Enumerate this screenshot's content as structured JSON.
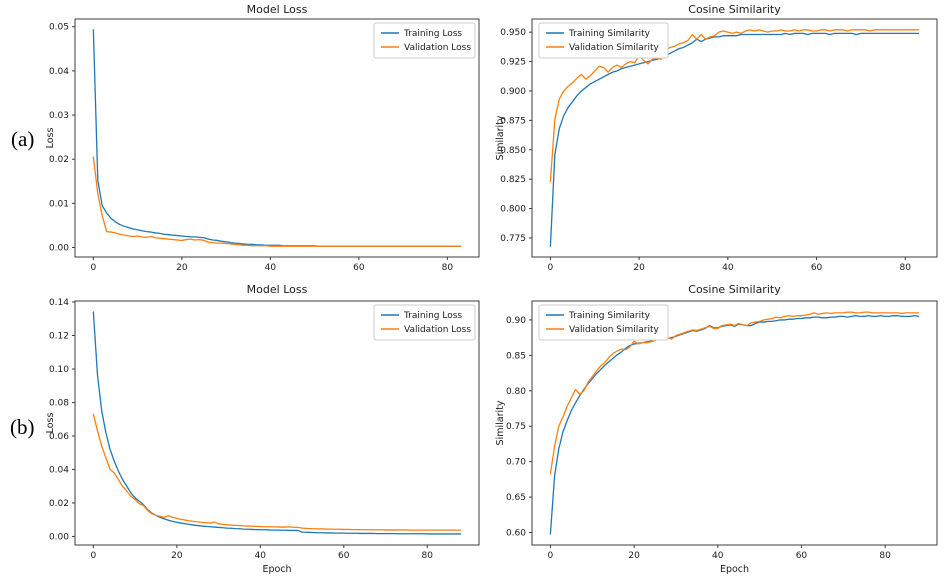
{
  "figure_labels": {
    "a": "(a)",
    "b": "(b)"
  },
  "colors": {
    "training": "#1f77b4",
    "validation": "#ff7f0e",
    "text": "#1a1a1a",
    "spine": "#3c3c3c",
    "legend_border": "#cccccc",
    "background": "#ffffff"
  },
  "chart_data": [
    {
      "id": "model-loss-a",
      "type": "line",
      "title": "Model Loss",
      "xlabel": "",
      "ylabel": "Loss",
      "xlim": [
        -4.15,
        87.15
      ],
      "ylim": [
        -0.00215,
        0.05175
      ],
      "x_start": 0,
      "x_step": 1,
      "grid": false,
      "legend_position": "upper-right",
      "xticks": [
        [
          0,
          "0"
        ],
        [
          20,
          "20"
        ],
        [
          40,
          "40"
        ],
        [
          60,
          "60"
        ],
        [
          80,
          "80"
        ]
      ],
      "yticks": [
        [
          0,
          "0.00"
        ],
        [
          0.01,
          "0.01"
        ],
        [
          0.02,
          "0.02"
        ],
        [
          0.03,
          "0.03"
        ],
        [
          0.04,
          "0.04"
        ],
        [
          0.05,
          "0.05"
        ]
      ],
      "series": [
        {
          "name": "Training Loss",
          "color_key": "training",
          "values": [
            0.0493,
            0.0152,
            0.0095,
            0.0078,
            0.0066,
            0.0058,
            0.0052,
            0.0048,
            0.0045,
            0.0042,
            0.004,
            0.0038,
            0.0036,
            0.0035,
            0.0033,
            0.0032,
            0.003,
            0.0029,
            0.0028,
            0.0027,
            0.0026,
            0.0025,
            0.0024,
            0.0024,
            0.0023,
            0.0022,
            0.0019,
            0.0017,
            0.0016,
            0.0014,
            0.0013,
            0.0011,
            0.001,
            0.0009,
            0.0008,
            0.0007,
            0.0007,
            0.0006,
            0.0006,
            0.0005,
            0.0005,
            0.0005,
            0.0005,
            0.0004,
            0.0004,
            0.0004,
            0.0004,
            0.0004,
            0.0004,
            0.0004,
            0.0004,
            0.0003,
            0.0003,
            0.0003,
            0.0003,
            0.0003,
            0.0003,
            0.0003,
            0.0003,
            0.0003,
            0.0003,
            0.0003,
            0.0003,
            0.0003,
            0.0003,
            0.0003,
            0.0003,
            0.0003,
            0.0003,
            0.0003,
            0.0003,
            0.0003,
            0.0003,
            0.0003,
            0.0003,
            0.0003,
            0.0003,
            0.0003,
            0.0003,
            0.0003,
            0.0003,
            0.0003,
            0.0003,
            0.0003
          ]
        },
        {
          "name": "Validation Loss",
          "color_key": "validation",
          "values": [
            0.0205,
            0.0122,
            0.0072,
            0.0036,
            0.0035,
            0.0033,
            0.003,
            0.0028,
            0.0026,
            0.0025,
            0.0026,
            0.0024,
            0.0023,
            0.0025,
            0.0022,
            0.0021,
            0.002,
            0.0019,
            0.0018,
            0.0017,
            0.0016,
            0.0018,
            0.0019,
            0.0017,
            0.0018,
            0.0016,
            0.0012,
            0.0011,
            0.001,
            0.001,
            0.0009,
            0.0008,
            0.0007,
            0.0006,
            0.0005,
            0.0005,
            0.0004,
            0.0004,
            0.0004,
            0.0004,
            0.0003,
            0.0003,
            0.0003,
            0.0003,
            0.0003,
            0.0003,
            0.0003,
            0.0003,
            0.0003,
            0.0003,
            0.0003,
            0.0003,
            0.0003,
            0.0003,
            0.0003,
            0.0003,
            0.0003,
            0.0003,
            0.0003,
            0.0003,
            0.0003,
            0.0003,
            0.0003,
            0.0003,
            0.0003,
            0.0003,
            0.0003,
            0.0003,
            0.0003,
            0.0003,
            0.0003,
            0.0003,
            0.0003,
            0.0003,
            0.0003,
            0.0003,
            0.0003,
            0.0003,
            0.0003,
            0.0003,
            0.0003,
            0.0003,
            0.0003,
            0.0003
          ]
        }
      ]
    },
    {
      "id": "cosine-similarity-a",
      "type": "line",
      "title": "Cosine Similarity",
      "xlabel": "",
      "ylabel": "Similarity",
      "xlim": [
        -4.15,
        87.15
      ],
      "ylim": [
        0.7588,
        0.9612
      ],
      "x_start": 0,
      "x_step": 1,
      "grid": false,
      "legend_position": "upper-left",
      "xticks": [
        [
          0,
          "0"
        ],
        [
          20,
          "20"
        ],
        [
          40,
          "40"
        ],
        [
          60,
          "60"
        ],
        [
          80,
          "80"
        ]
      ],
      "yticks": [
        [
          0.775,
          "0.775"
        ],
        [
          0.8,
          "0.800"
        ],
        [
          0.825,
          "0.825"
        ],
        [
          0.85,
          "0.850"
        ],
        [
          0.875,
          "0.875"
        ],
        [
          0.9,
          "0.900"
        ],
        [
          0.925,
          "0.925"
        ],
        [
          0.95,
          "0.950"
        ]
      ],
      "series": [
        {
          "name": "Training Similarity",
          "color_key": "training",
          "values": [
            0.768,
            0.846,
            0.868,
            0.879,
            0.886,
            0.891,
            0.896,
            0.9,
            0.903,
            0.906,
            0.908,
            0.91,
            0.912,
            0.914,
            0.916,
            0.917,
            0.919,
            0.92,
            0.921,
            0.922,
            0.923,
            0.924,
            0.925,
            0.926,
            0.927,
            0.928,
            0.93,
            0.932,
            0.934,
            0.936,
            0.937,
            0.939,
            0.941,
            0.944,
            0.942,
            0.944,
            0.945,
            0.946,
            0.946,
            0.947,
            0.947,
            0.947,
            0.947,
            0.948,
            0.948,
            0.948,
            0.948,
            0.948,
            0.948,
            0.948,
            0.948,
            0.948,
            0.948,
            0.949,
            0.948,
            0.949,
            0.949,
            0.949,
            0.948,
            0.949,
            0.949,
            0.949,
            0.949,
            0.948,
            0.949,
            0.949,
            0.949,
            0.949,
            0.949,
            0.948,
            0.949,
            0.949,
            0.949,
            0.949,
            0.949,
            0.949,
            0.949,
            0.949,
            0.949,
            0.949,
            0.949,
            0.949,
            0.949,
            0.949
          ]
        },
        {
          "name": "Validation Similarity",
          "color_key": "validation",
          "values": [
            0.823,
            0.876,
            0.893,
            0.9,
            0.904,
            0.907,
            0.911,
            0.914,
            0.91,
            0.913,
            0.917,
            0.921,
            0.92,
            0.916,
            0.92,
            0.922,
            0.92,
            0.923,
            0.925,
            0.924,
            0.93,
            0.926,
            0.923,
            0.927,
            0.928,
            0.927,
            0.935,
            0.937,
            0.938,
            0.94,
            0.941,
            0.943,
            0.948,
            0.944,
            0.948,
            0.944,
            0.946,
            0.947,
            0.95,
            0.951,
            0.95,
            0.949,
            0.95,
            0.949,
            0.951,
            0.952,
            0.951,
            0.952,
            0.951,
            0.95,
            0.951,
            0.951,
            0.952,
            0.951,
            0.951,
            0.952,
            0.951,
            0.952,
            0.952,
            0.951,
            0.951,
            0.952,
            0.952,
            0.951,
            0.952,
            0.952,
            0.952,
            0.951,
            0.952,
            0.952,
            0.952,
            0.952,
            0.951,
            0.952,
            0.952,
            0.952,
            0.952,
            0.952,
            0.952,
            0.952,
            0.952,
            0.952,
            0.952,
            0.952
          ]
        }
      ]
    },
    {
      "id": "model-loss-b",
      "type": "line",
      "title": "Model Loss",
      "xlabel": "Epoch",
      "ylabel": "Loss",
      "xlim": [
        -4.4,
        92.4
      ],
      "ylim": [
        -0.0051,
        0.1406
      ],
      "x_start": 0,
      "x_step": 1,
      "grid": false,
      "legend_position": "upper-right",
      "xticks": [
        [
          0,
          "0"
        ],
        [
          20,
          "20"
        ],
        [
          40,
          "40"
        ],
        [
          60,
          "60"
        ],
        [
          80,
          "80"
        ]
      ],
      "yticks": [
        [
          0,
          "0.00"
        ],
        [
          0.02,
          "0.02"
        ],
        [
          0.04,
          "0.04"
        ],
        [
          0.06,
          "0.06"
        ],
        [
          0.08,
          "0.08"
        ],
        [
          0.1,
          "0.10"
        ],
        [
          0.12,
          "0.12"
        ],
        [
          0.14,
          "0.14"
        ]
      ],
      "series": [
        {
          "name": "Training Loss",
          "color_key": "training",
          "values": [
            0.134,
            0.096,
            0.075,
            0.062,
            0.052,
            0.045,
            0.039,
            0.034,
            0.03,
            0.026,
            0.023,
            0.021,
            0.019,
            0.016,
            0.014,
            0.0126,
            0.0114,
            0.0105,
            0.0097,
            0.009,
            0.0085,
            0.008,
            0.0076,
            0.0072,
            0.0068,
            0.0065,
            0.0062,
            0.006,
            0.0058,
            0.0056,
            0.0054,
            0.0052,
            0.005,
            0.0049,
            0.0047,
            0.0046,
            0.0044,
            0.0043,
            0.0042,
            0.0041,
            0.004,
            0.004,
            0.0039,
            0.0038,
            0.0038,
            0.0037,
            0.0037,
            0.0036,
            0.0036,
            0.0036,
            0.0026,
            0.0025,
            0.0024,
            0.0023,
            0.0022,
            0.0022,
            0.0021,
            0.0021,
            0.002,
            0.002,
            0.002,
            0.0019,
            0.0019,
            0.0019,
            0.0018,
            0.0018,
            0.0018,
            0.0018,
            0.0017,
            0.0017,
            0.0017,
            0.0017,
            0.0017,
            0.0016,
            0.0016,
            0.0016,
            0.0016,
            0.0016,
            0.0016,
            0.0016,
            0.0015,
            0.0015,
            0.0015,
            0.0015,
            0.0015,
            0.0015,
            0.0015,
            0.0015,
            0.0015
          ]
        },
        {
          "name": "Validation Loss",
          "color_key": "validation",
          "values": [
            0.073,
            0.063,
            0.054,
            0.047,
            0.04,
            0.038,
            0.034,
            0.03,
            0.027,
            0.024,
            0.022,
            0.0195,
            0.0185,
            0.0155,
            0.0136,
            0.0126,
            0.012,
            0.0114,
            0.0124,
            0.0114,
            0.0108,
            0.0102,
            0.0098,
            0.0093,
            0.009,
            0.0087,
            0.0084,
            0.0082,
            0.008,
            0.0086,
            0.0076,
            0.0072,
            0.007,
            0.0068,
            0.0066,
            0.0065,
            0.0063,
            0.0062,
            0.0061,
            0.006,
            0.0059,
            0.0058,
            0.0058,
            0.0057,
            0.0057,
            0.0056,
            0.0056,
            0.0057,
            0.0055,
            0.0054,
            0.005,
            0.0048,
            0.0047,
            0.0046,
            0.0045,
            0.0045,
            0.0044,
            0.0044,
            0.0043,
            0.0043,
            0.0042,
            0.0042,
            0.0041,
            0.0041,
            0.0041,
            0.004,
            0.004,
            0.004,
            0.004,
            0.004,
            0.0039,
            0.0039,
            0.0039,
            0.0039,
            0.0039,
            0.0039,
            0.0038,
            0.0038,
            0.0038,
            0.0038,
            0.0038,
            0.0038,
            0.0038,
            0.0038,
            0.0038,
            0.0038,
            0.0038,
            0.0038,
            0.0038
          ]
        }
      ]
    },
    {
      "id": "cosine-similarity-b",
      "type": "line",
      "title": "Cosine Similarity",
      "xlabel": "Epoch",
      "ylabel": "Similarity",
      "xlim": [
        -4.4,
        92.4
      ],
      "ylim": [
        0.5824,
        0.9267
      ],
      "x_start": 0,
      "x_step": 1,
      "grid": false,
      "legend_position": "upper-left",
      "xticks": [
        [
          0,
          "0"
        ],
        [
          20,
          "20"
        ],
        [
          40,
          "40"
        ],
        [
          60,
          "60"
        ],
        [
          80,
          "80"
        ]
      ],
      "yticks": [
        [
          0.6,
          "0.60"
        ],
        [
          0.65,
          "0.65"
        ],
        [
          0.7,
          "0.70"
        ],
        [
          0.75,
          "0.75"
        ],
        [
          0.8,
          "0.80"
        ],
        [
          0.85,
          "0.85"
        ],
        [
          0.9,
          "0.90"
        ]
      ],
      "series": [
        {
          "name": "Training Similarity",
          "color_key": "training",
          "values": [
            0.598,
            0.68,
            0.718,
            0.742,
            0.758,
            0.772,
            0.783,
            0.793,
            0.802,
            0.81,
            0.817,
            0.824,
            0.83,
            0.836,
            0.841,
            0.846,
            0.851,
            0.855,
            0.86,
            0.864,
            0.866,
            0.867,
            0.868,
            0.869,
            0.87,
            0.871,
            0.875,
            0.873,
            0.874,
            0.875,
            0.877,
            0.879,
            0.881,
            0.883,
            0.885,
            0.884,
            0.886,
            0.888,
            0.892,
            0.889,
            0.889,
            0.891,
            0.892,
            0.893,
            0.891,
            0.894,
            0.893,
            0.892,
            0.892,
            0.895,
            0.897,
            0.897,
            0.898,
            0.898,
            0.899,
            0.9,
            0.9,
            0.901,
            0.901,
            0.902,
            0.902,
            0.903,
            0.903,
            0.904,
            0.904,
            0.903,
            0.903,
            0.904,
            0.904,
            0.905,
            0.905,
            0.904,
            0.905,
            0.906,
            0.905,
            0.905,
            0.906,
            0.905,
            0.905,
            0.906,
            0.905,
            0.905,
            0.906,
            0.906,
            0.905,
            0.905,
            0.905,
            0.906,
            0.905
          ]
        },
        {
          "name": "Validation Similarity",
          "color_key": "validation",
          "values": [
            0.683,
            0.722,
            0.75,
            0.763,
            0.778,
            0.79,
            0.802,
            0.795,
            0.8,
            0.812,
            0.82,
            0.828,
            0.835,
            0.84,
            0.847,
            0.853,
            0.856,
            0.859,
            0.858,
            0.862,
            0.87,
            0.866,
            0.868,
            0.868,
            0.869,
            0.871,
            0.877,
            0.872,
            0.875,
            0.873,
            0.878,
            0.88,
            0.882,
            0.884,
            0.886,
            0.885,
            0.887,
            0.889,
            0.891,
            0.888,
            0.888,
            0.892,
            0.893,
            0.894,
            0.892,
            0.895,
            0.893,
            0.892,
            0.896,
            0.897,
            0.898,
            0.9,
            0.901,
            0.902,
            0.904,
            0.903,
            0.905,
            0.906,
            0.905,
            0.906,
            0.906,
            0.907,
            0.908,
            0.91,
            0.908,
            0.909,
            0.91,
            0.909,
            0.91,
            0.91,
            0.91,
            0.911,
            0.911,
            0.91,
            0.91,
            0.911,
            0.911,
            0.91,
            0.91,
            0.91,
            0.91,
            0.91,
            0.91,
            0.91,
            0.909,
            0.91,
            0.91,
            0.91,
            0.91
          ]
        }
      ]
    }
  ]
}
